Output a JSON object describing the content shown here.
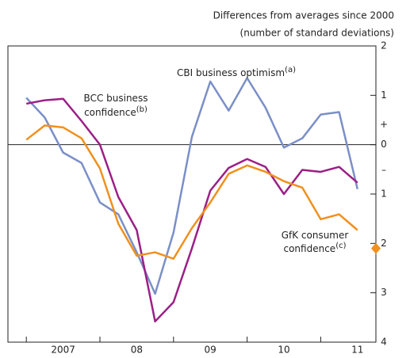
{
  "chart_data": {
    "type": "line",
    "header": [
      "Differences from averages since 2000",
      "(number of standard deviations)"
    ],
    "x": [
      2007,
      2007.25,
      2007.5,
      2007.75,
      2008,
      2008.25,
      2008.5,
      2008.75,
      2009,
      2009.25,
      2009.5,
      2009.75,
      2010,
      2010.25,
      2010.5,
      2010.75,
      2011,
      2011.25,
      2011.5
    ],
    "series": [
      {
        "name": "CBI business optimism",
        "note": "(a)",
        "color": "#7b8fc7",
        "values": [
          0.95,
          0.55,
          -0.16,
          -0.37,
          -1.17,
          -1.41,
          -2.18,
          -3.02,
          -1.78,
          0.16,
          1.28,
          0.69,
          1.35,
          0.75,
          -0.06,
          0.13,
          0.61,
          0.66,
          -0.9
        ]
      },
      {
        "name": "BCC business confidence",
        "note": "(b)",
        "color": "#9b1f86",
        "values": [
          0.83,
          0.9,
          0.93,
          0.48,
          0,
          -1.06,
          -1.73,
          -3.58,
          -3.19,
          -2.1,
          -0.93,
          -0.47,
          -0.29,
          -0.45,
          -1.0,
          -0.51,
          -0.55,
          -0.45,
          -0.77
        ]
      },
      {
        "name": "GfK consumer confidence",
        "note": "(c)",
        "color": "#f0901e",
        "values": [
          0.1,
          0.39,
          0.35,
          0.13,
          -0.48,
          -1.6,
          -2.25,
          -2.18,
          -2.31,
          -1.69,
          -1.17,
          -0.59,
          -0.42,
          -0.55,
          -0.74,
          -0.87,
          -1.51,
          -1.41,
          -1.73
        ]
      }
    ],
    "diamond": {
      "x": 2011.75,
      "value": -2.1,
      "color": "#f0901e"
    },
    "xlim": [
      2006.75,
      2011.75
    ],
    "xticks": [
      {
        "value": 2007,
        "label": "2007"
      },
      {
        "value": 2008,
        "label": "08"
      },
      {
        "value": 2009,
        "label": "09"
      },
      {
        "value": 2010,
        "label": "10"
      },
      {
        "value": 2011,
        "label": "11"
      }
    ],
    "ylim": [
      -4,
      2
    ],
    "yticks": [
      2,
      1,
      0,
      {
        "value": -1,
        "label": "1"
      },
      {
        "value": -2,
        "label": "2"
      },
      {
        "value": -3,
        "label": "3"
      },
      {
        "value": -4,
        "label": "4"
      }
    ],
    "sign_labels": [
      "+",
      "–"
    ]
  }
}
